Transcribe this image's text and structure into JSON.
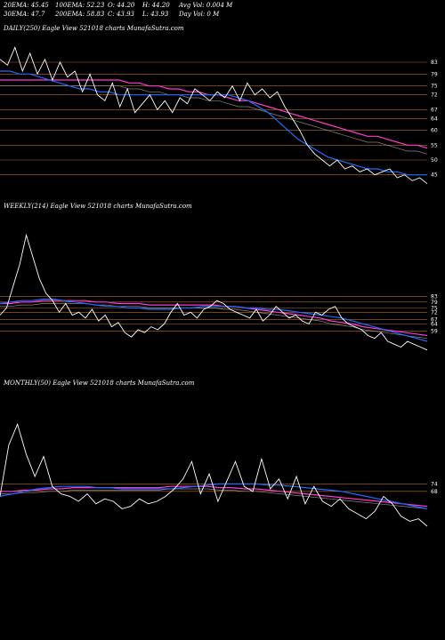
{
  "header": {
    "ema20": "20EMA: 45.45",
    "ema100": "100EMA: 52.23",
    "open": "O: 44.20",
    "high": "H: 44.20",
    "avgvol": "Avg Vol: 0.004  M",
    "ema30": "30EMA: 47.7",
    "ema200": "200EMA: 58.83",
    "close": "C: 43.93",
    "low": "L: 43.93",
    "dayvol": "Day Vol: 0  M"
  },
  "panels": {
    "daily": "DAILY(250) Eagle  View  521018  charts MunafaSutra.com",
    "weekly": "WEEKLY(214) Eagle  View  521018  charts MunafaSutra.com",
    "monthly": "MONTHLY(50) Eagle  View  521018  charts MunafaSutra.com"
  },
  "colors": {
    "price": "#ffffff",
    "ema_fast": "#1e6bff",
    "ema_slow": "#ff3ad2",
    "ema_mid": "#c0c0c0",
    "level": "#c87828"
  },
  "chart_data": [
    {
      "type": "line",
      "name": "daily",
      "ylim": [
        38,
        92
      ],
      "levels": [
        "83",
        "79",
        "75",
        "72",
        "67",
        "64",
        "60",
        "55",
        "50",
        "45"
      ],
      "level_values": [
        83,
        79,
        75,
        72,
        67,
        64,
        60,
        55,
        50,
        45
      ],
      "price": [
        84,
        82,
        88,
        80,
        86,
        79,
        84,
        77,
        83,
        78,
        80,
        73,
        79,
        72,
        70,
        76,
        68,
        74,
        66,
        69,
        72,
        67,
        70,
        66,
        71,
        69,
        74,
        72,
        70,
        73,
        71,
        75,
        70,
        76,
        72,
        74,
        71,
        73,
        68,
        64,
        60,
        55,
        52,
        50,
        48,
        50,
        47,
        48,
        46,
        47,
        45,
        46,
        47,
        44,
        45,
        43,
        44,
        42
      ],
      "ema_fast": [
        80,
        80,
        79,
        79,
        78,
        77,
        76,
        75,
        74,
        74,
        73,
        73,
        72,
        72,
        72,
        72,
        72,
        72,
        72,
        72,
        72,
        72,
        72,
        72,
        71,
        70,
        68,
        66,
        63,
        60,
        57,
        55,
        53,
        51,
        50,
        49,
        48,
        47,
        47,
        46,
        46,
        45,
        45,
        45
      ],
      "ema_slow": [
        77,
        77,
        77,
        77,
        77,
        77,
        77,
        77,
        77,
        77,
        77,
        77,
        77,
        76,
        76,
        75,
        75,
        74,
        74,
        73,
        73,
        72,
        72,
        71,
        70,
        70,
        69,
        68,
        67,
        66,
        65,
        64,
        63,
        62,
        61,
        60,
        59,
        58,
        58,
        57,
        56,
        55,
        55,
        54
      ]
    },
    {
      "type": "line",
      "name": "weekly",
      "ylim": [
        30,
        140
      ],
      "levels": [
        "83",
        "79",
        "75",
        "72",
        "67",
        "64",
        "59"
      ],
      "level_values": [
        83,
        79,
        75,
        72,
        67,
        64,
        59
      ],
      "price": [
        70,
        75,
        90,
        105,
        125,
        110,
        95,
        85,
        80,
        72,
        78,
        70,
        72,
        68,
        74,
        66,
        70,
        62,
        65,
        58,
        55,
        60,
        58,
        62,
        60,
        64,
        72,
        78,
        70,
        72,
        68,
        74,
        76,
        80,
        78,
        74,
        72,
        70,
        68,
        74,
        66,
        70,
        76,
        72,
        68,
        70,
        66,
        64,
        72,
        70,
        74,
        76,
        68,
        64,
        62,
        60,
        56,
        54,
        58,
        52,
        50,
        48,
        52,
        50,
        48,
        46
      ],
      "ema_fast": [
        78,
        79,
        80,
        80,
        81,
        81,
        80,
        79,
        78,
        77,
        76,
        76,
        75,
        75,
        74,
        74,
        74,
        75,
        75,
        76,
        76,
        76,
        76,
        75,
        75,
        74,
        74,
        73,
        72,
        71,
        70,
        69,
        68,
        66,
        64,
        62,
        60,
        58,
        56,
        54,
        52
      ],
      "ema_slow": [
        78,
        78,
        79,
        79,
        80,
        80,
        80,
        80,
        80,
        79,
        79,
        78,
        78,
        78,
        77,
        77,
        77,
        77,
        77,
        77,
        77,
        76,
        76,
        75,
        74,
        73,
        72,
        71,
        70,
        69,
        68,
        66,
        65,
        64,
        62,
        61,
        60,
        59,
        58,
        57,
        56
      ]
    },
    {
      "type": "line",
      "name": "monthly",
      "ylim": [
        20,
        150
      ],
      "levels": [
        "74",
        "68"
      ],
      "level_values": [
        74,
        68
      ],
      "price": [
        64,
        105,
        122,
        98,
        80,
        96,
        72,
        66,
        64,
        60,
        66,
        58,
        62,
        60,
        54,
        56,
        62,
        58,
        60,
        64,
        70,
        78,
        92,
        66,
        82,
        60,
        76,
        92,
        72,
        68,
        94,
        70,
        78,
        62,
        80,
        58,
        72,
        60,
        56,
        62,
        54,
        50,
        46,
        52,
        64,
        58,
        48,
        44,
        46,
        40
      ],
      "ema_fast": [
        64,
        66,
        68,
        70,
        71,
        72,
        72,
        72,
        71,
        71,
        70,
        70,
        70,
        70,
        70,
        71,
        72,
        73,
        74,
        74,
        74,
        74,
        73,
        73,
        72,
        71,
        70,
        69,
        68,
        66,
        64,
        62,
        60,
        58,
        56,
        54
      ],
      "ema_slow": [
        68,
        68,
        69,
        69,
        70,
        70,
        71,
        71,
        71,
        71,
        71,
        71,
        71,
        71,
        72,
        72,
        72,
        72,
        71,
        71,
        70,
        70,
        69,
        68,
        67,
        66,
        65,
        64,
        63,
        62,
        61,
        60,
        59,
        58,
        57,
        56
      ]
    }
  ]
}
